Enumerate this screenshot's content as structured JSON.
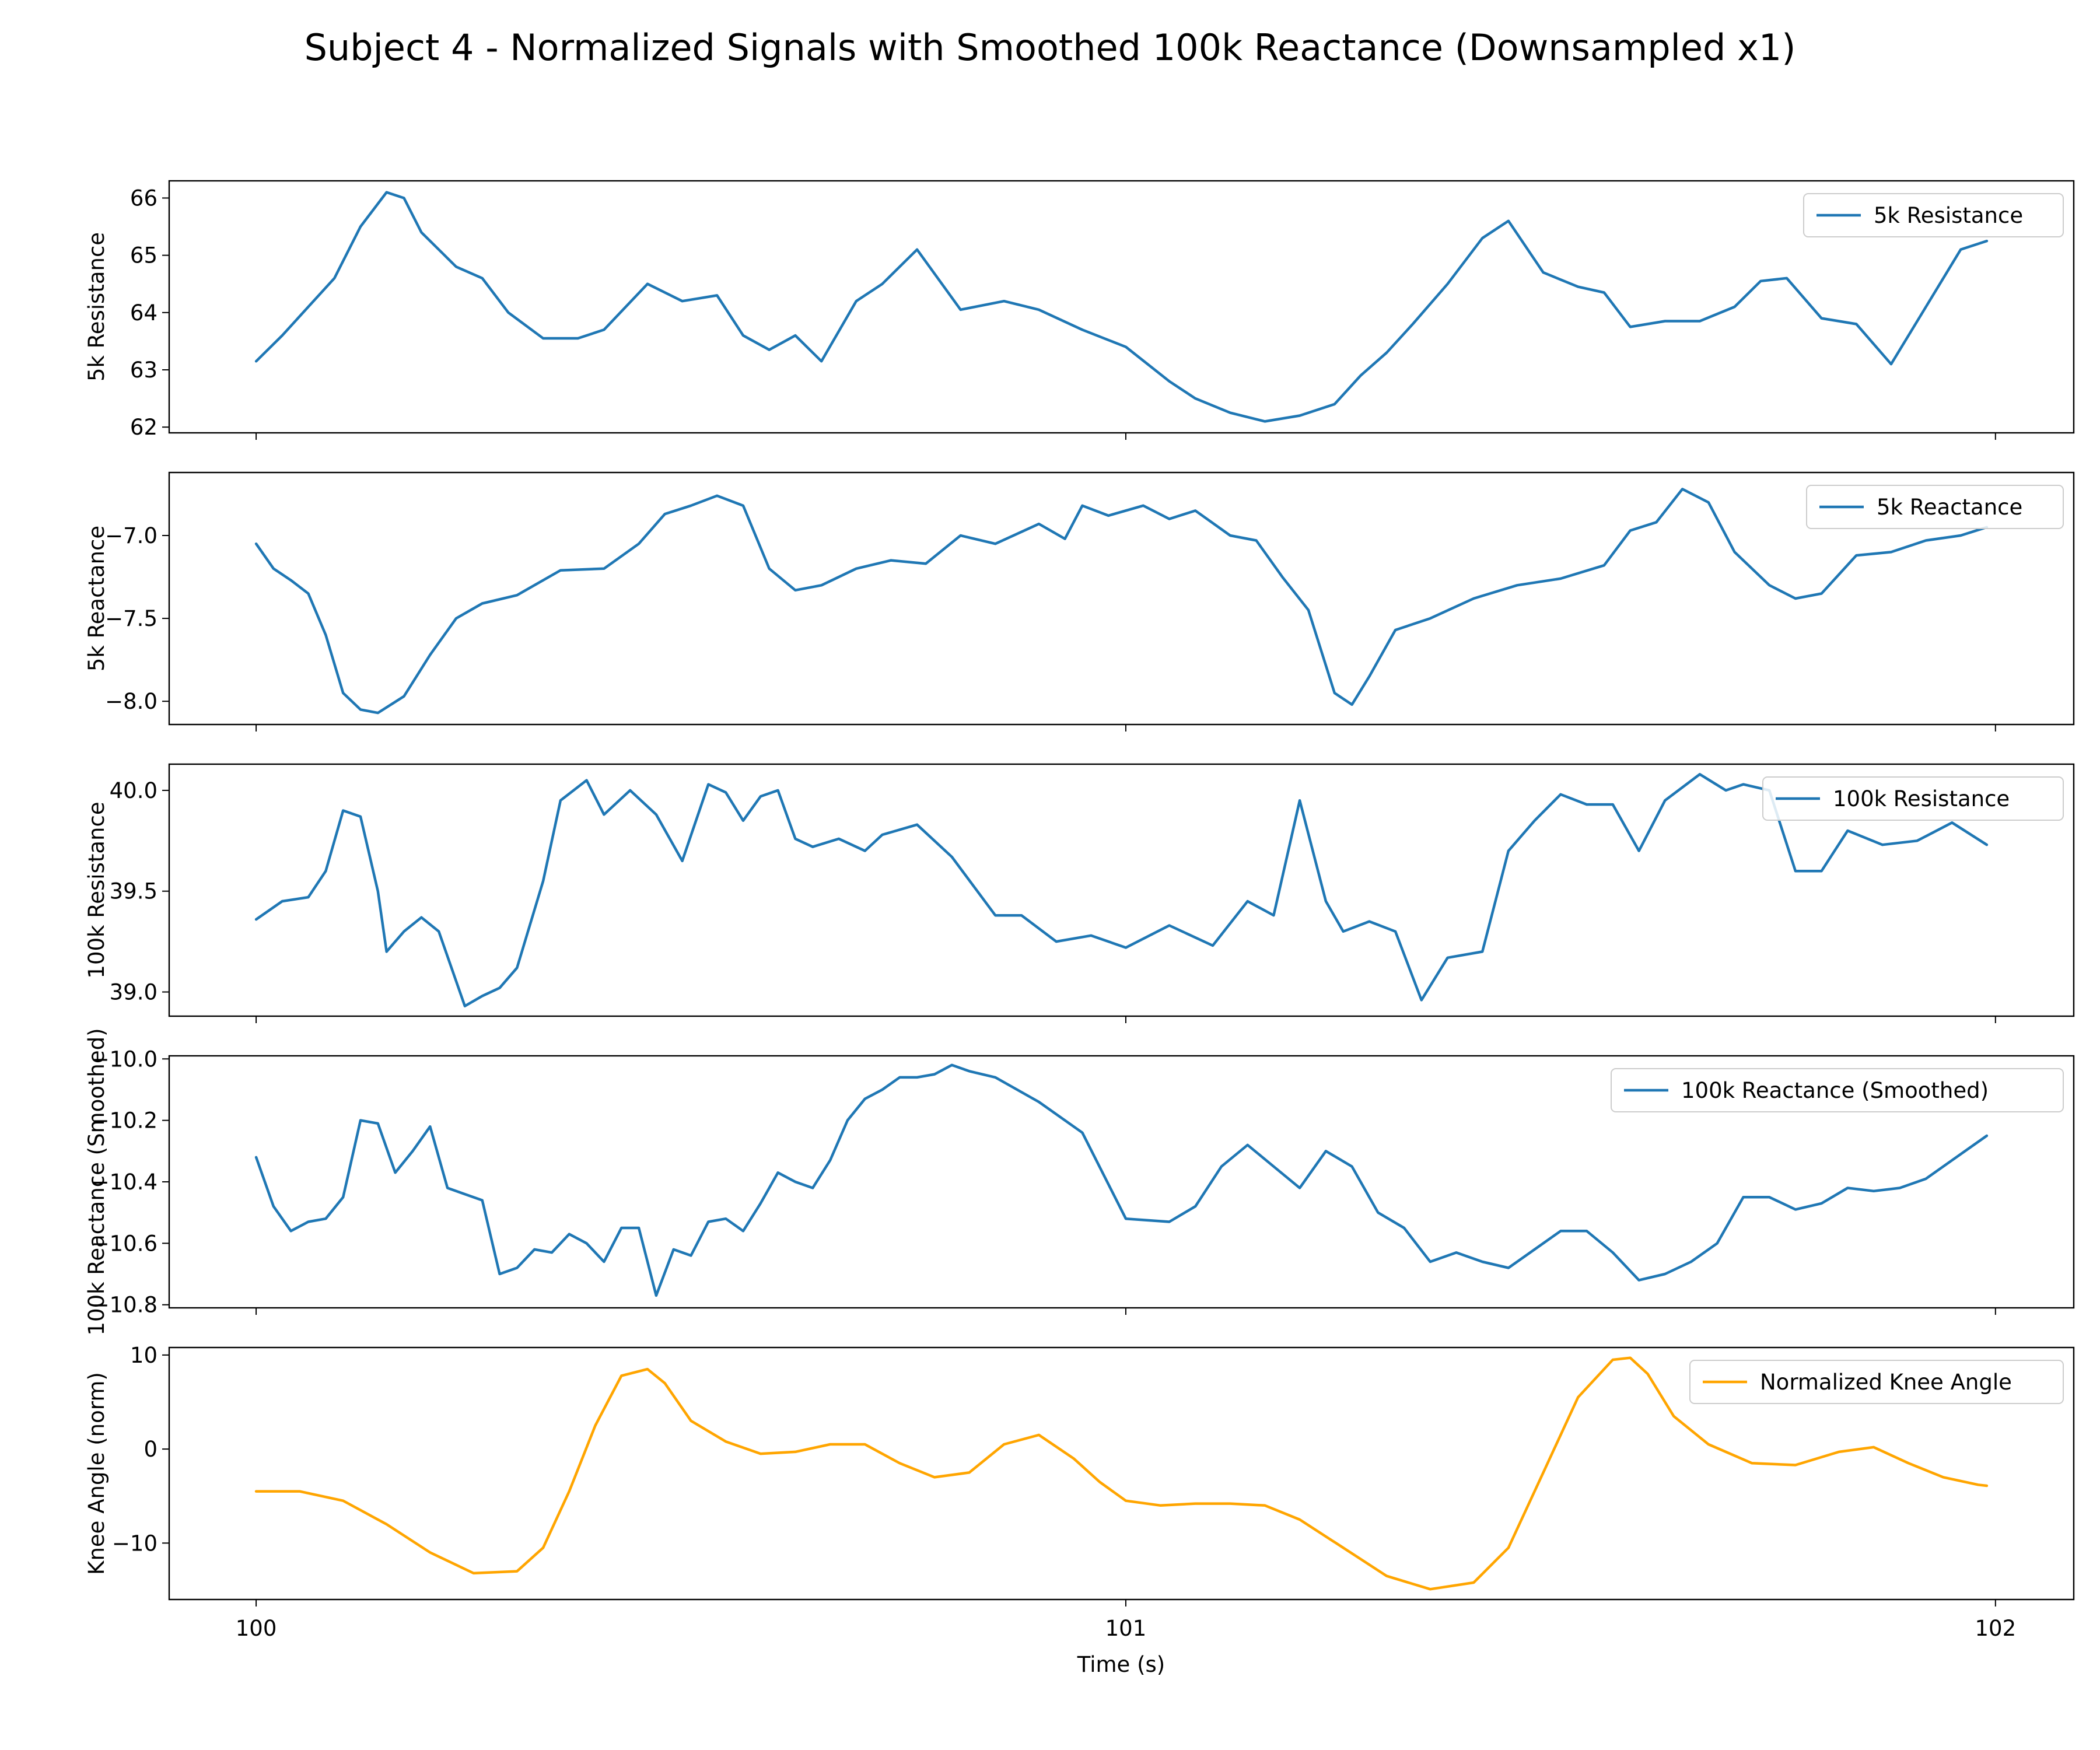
{
  "figure": {
    "title": "Subject 4 - Normalized Signals with Smoothed 100k Reactance (Downsampled x1)",
    "xlabel": "Time (s)",
    "xlim": [
      99.9,
      102.09
    ],
    "xticks": [
      100,
      101,
      102
    ]
  },
  "chart_data": [
    {
      "type": "line",
      "ylabel": "5k Resistance",
      "ylim": [
        61.9,
        66.3
      ],
      "yticks": [
        62,
        63,
        64,
        65,
        66
      ],
      "ytick_labels": [
        "62",
        "63",
        "64",
        "65",
        "66"
      ],
      "legend": "upper-right",
      "series": [
        {
          "name": "5k Resistance",
          "color": "#1f77b4",
          "x": [
            100,
            100.03,
            100.06,
            100.09,
            100.12,
            100.15,
            100.17,
            100.19,
            100.23,
            100.26,
            100.29,
            100.33,
            100.37,
            100.4,
            100.45,
            100.49,
            100.53,
            100.56,
            100.59,
            100.62,
            100.65,
            100.69,
            100.72,
            100.76,
            100.81,
            100.86,
            100.9,
            100.95,
            101.0,
            101.05,
            101.08,
            101.12,
            101.16,
            101.2,
            101.24,
            101.27,
            101.3,
            101.33,
            101.37,
            101.41,
            101.44,
            101.48,
            101.52,
            101.55,
            101.58,
            101.62,
            101.66,
            101.7,
            101.73,
            101.76,
            101.8,
            101.84,
            101.88,
            101.92,
            101.96,
            101.99
          ],
          "y": [
            63.15,
            63.6,
            64.1,
            64.6,
            65.5,
            66.1,
            66.0,
            65.4,
            64.8,
            64.6,
            64.0,
            63.55,
            63.55,
            63.7,
            64.5,
            64.2,
            64.3,
            63.6,
            63.35,
            63.6,
            63.15,
            64.2,
            64.5,
            65.1,
            64.05,
            64.2,
            64.05,
            63.7,
            63.4,
            62.8,
            62.5,
            62.25,
            62.1,
            62.2,
            62.4,
            62.9,
            63.3,
            63.8,
            64.5,
            65.3,
            65.6,
            64.7,
            64.45,
            64.35,
            63.75,
            63.85,
            63.85,
            64.1,
            64.55,
            64.6,
            63.9,
            63.8,
            63.1,
            64.1,
            65.1,
            65.25
          ]
        }
      ]
    },
    {
      "type": "line",
      "ylabel": "5k Reactance",
      "ylim": [
        -8.14,
        -6.62
      ],
      "yticks": [
        -8.0,
        -7.5,
        -7.0
      ],
      "ytick_labels": [
        "−8.0",
        "−7.5",
        "−7.0"
      ],
      "legend": "upper-right",
      "series": [
        {
          "name": "5k Reactance",
          "color": "#1f77b4",
          "x": [
            100,
            100.02,
            100.04,
            100.06,
            100.08,
            100.1,
            100.12,
            100.14,
            100.17,
            100.2,
            100.23,
            100.26,
            100.3,
            100.35,
            100.4,
            100.44,
            100.47,
            100.5,
            100.53,
            100.56,
            100.59,
            100.62,
            100.65,
            100.69,
            100.73,
            100.77,
            100.81,
            100.85,
            100.9,
            100.93,
            100.95,
            100.98,
            101.02,
            101.05,
            101.08,
            101.12,
            101.15,
            101.18,
            101.21,
            101.24,
            101.26,
            101.28,
            101.31,
            101.35,
            101.4,
            101.45,
            101.5,
            101.55,
            101.58,
            101.61,
            101.64,
            101.67,
            101.7,
            101.74,
            101.77,
            101.8,
            101.84,
            101.88,
            101.92,
            101.96,
            101.99
          ],
          "y": [
            -7.05,
            -7.2,
            -7.27,
            -7.35,
            -7.6,
            -7.95,
            -8.05,
            -8.07,
            -7.97,
            -7.72,
            -7.5,
            -7.41,
            -7.36,
            -7.21,
            -7.2,
            -7.05,
            -6.87,
            -6.82,
            -6.76,
            -6.82,
            -7.2,
            -7.33,
            -7.3,
            -7.2,
            -7.15,
            -7.17,
            -7.0,
            -7.05,
            -6.93,
            -7.02,
            -6.82,
            -6.88,
            -6.82,
            -6.9,
            -6.85,
            -7.0,
            -7.03,
            -7.25,
            -7.45,
            -7.95,
            -8.02,
            -7.85,
            -7.57,
            -7.5,
            -7.38,
            -7.3,
            -7.26,
            -7.18,
            -6.97,
            -6.92,
            -6.72,
            -6.8,
            -7.1,
            -7.3,
            -7.38,
            -7.35,
            -7.12,
            -7.1,
            -7.03,
            -7.0,
            -6.95
          ]
        }
      ]
    },
    {
      "type": "line",
      "ylabel": "100k Resistance",
      "ylim": [
        38.88,
        40.13
      ],
      "yticks": [
        39.0,
        39.5,
        40.0
      ],
      "ytick_labels": [
        "39.0",
        "39.5",
        "40.0"
      ],
      "legend": "upper-right",
      "series": [
        {
          "name": "100k Resistance",
          "color": "#1f77b4",
          "x": [
            100,
            100.03,
            100.06,
            100.08,
            100.1,
            100.12,
            100.14,
            100.15,
            100.17,
            100.19,
            100.21,
            100.24,
            100.26,
            100.28,
            100.3,
            100.33,
            100.35,
            100.38,
            100.4,
            100.43,
            100.46,
            100.49,
            100.52,
            100.54,
            100.56,
            100.58,
            100.6,
            100.62,
            100.64,
            100.67,
            100.7,
            100.72,
            100.76,
            100.8,
            100.85,
            100.88,
            100.92,
            100.96,
            101.0,
            101.05,
            101.1,
            101.14,
            101.17,
            101.2,
            101.23,
            101.25,
            101.28,
            101.31,
            101.34,
            101.37,
            101.41,
            101.44,
            101.47,
            101.5,
            101.53,
            101.56,
            101.59,
            101.62,
            101.66,
            101.69,
            101.71,
            101.74,
            101.77,
            101.8,
            101.83,
            101.87,
            101.91,
            101.95,
            101.99
          ],
          "y": [
            39.36,
            39.45,
            39.47,
            39.6,
            39.9,
            39.87,
            39.5,
            39.2,
            39.3,
            39.37,
            39.3,
            38.93,
            38.98,
            39.02,
            39.12,
            39.55,
            39.95,
            40.05,
            39.88,
            40.0,
            39.88,
            39.65,
            40.03,
            39.99,
            39.85,
            39.97,
            40.0,
            39.76,
            39.72,
            39.76,
            39.7,
            39.78,
            39.83,
            39.67,
            39.38,
            39.38,
            39.25,
            39.28,
            39.22,
            39.33,
            39.23,
            39.45,
            39.38,
            39.95,
            39.45,
            39.3,
            39.35,
            39.3,
            38.96,
            39.17,
            39.2,
            39.7,
            39.85,
            39.98,
            39.93,
            39.93,
            39.7,
            39.95,
            40.08,
            40.0,
            40.03,
            40.0,
            39.6,
            39.6,
            39.8,
            39.73,
            39.75,
            39.84,
            39.73
          ]
        }
      ]
    },
    {
      "type": "line",
      "ylabel": "100k Reactance (Smoothed)",
      "ylim": [
        -10.81,
        -9.99
      ],
      "yticks": [
        -10.8,
        -10.6,
        -10.4,
        -10.2,
        -10.0
      ],
      "ytick_labels": [
        "−10.8",
        "−10.6",
        "−10.4",
        "−10.2",
        "−10.0"
      ],
      "legend": "upper-right",
      "series": [
        {
          "name": "100k Reactance (Smoothed)",
          "color": "#1f77b4",
          "x": [
            100,
            100.02,
            100.04,
            100.06,
            100.08,
            100.1,
            100.12,
            100.14,
            100.16,
            100.18,
            100.2,
            100.22,
            100.24,
            100.26,
            100.28,
            100.3,
            100.32,
            100.34,
            100.36,
            100.38,
            100.4,
            100.42,
            100.44,
            100.46,
            100.48,
            100.5,
            100.52,
            100.54,
            100.56,
            100.58,
            100.6,
            100.62,
            100.64,
            100.66,
            100.68,
            100.7,
            100.72,
            100.74,
            100.76,
            100.78,
            100.8,
            100.82,
            100.85,
            100.9,
            100.95,
            101.0,
            101.05,
            101.08,
            101.11,
            101.14,
            101.17,
            101.2,
            101.23,
            101.26,
            101.29,
            101.32,
            101.35,
            101.38,
            101.41,
            101.44,
            101.47,
            101.5,
            101.53,
            101.56,
            101.59,
            101.62,
            101.65,
            101.68,
            101.71,
            101.74,
            101.77,
            101.8,
            101.83,
            101.86,
            101.89,
            101.92,
            101.95,
            101.97,
            101.99
          ],
          "y": [
            -10.32,
            -10.48,
            -10.56,
            -10.53,
            -10.52,
            -10.45,
            -10.2,
            -10.21,
            -10.37,
            -10.3,
            -10.22,
            -10.42,
            -10.44,
            -10.46,
            -10.7,
            -10.68,
            -10.62,
            -10.63,
            -10.57,
            -10.6,
            -10.66,
            -10.55,
            -10.55,
            -10.77,
            -10.62,
            -10.64,
            -10.53,
            -10.52,
            -10.56,
            -10.47,
            -10.37,
            -10.4,
            -10.42,
            -10.33,
            -10.2,
            -10.13,
            -10.1,
            -10.06,
            -10.06,
            -10.05,
            -10.02,
            -10.04,
            -10.06,
            -10.14,
            -10.24,
            -10.52,
            -10.53,
            -10.48,
            -10.35,
            -10.28,
            -10.35,
            -10.42,
            -10.3,
            -10.35,
            -10.5,
            -10.55,
            -10.66,
            -10.63,
            -10.66,
            -10.68,
            -10.62,
            -10.56,
            -10.56,
            -10.63,
            -10.72,
            -10.7,
            -10.66,
            -10.6,
            -10.45,
            -10.45,
            -10.49,
            -10.47,
            -10.42,
            -10.43,
            -10.42,
            -10.39,
            -10.33,
            -10.29,
            -10.25
          ]
        }
      ]
    },
    {
      "type": "line",
      "ylabel": "Knee Angle (norm)",
      "ylim": [
        -16.0,
        10.8
      ],
      "yticks": [
        -10,
        0,
        10
      ],
      "ytick_labels": [
        "−10",
        "0",
        "10"
      ],
      "legend": "upper-right",
      "series": [
        {
          "name": "Normalized Knee Angle",
          "color": "#ffa500",
          "x": [
            100,
            100.05,
            100.1,
            100.15,
            100.2,
            100.25,
            100.3,
            100.33,
            100.36,
            100.39,
            100.42,
            100.45,
            100.47,
            100.5,
            100.54,
            100.58,
            100.62,
            100.66,
            100.7,
            100.74,
            100.78,
            100.82,
            100.86,
            100.9,
            100.94,
            100.97,
            101.0,
            101.04,
            101.08,
            101.12,
            101.16,
            101.2,
            101.25,
            101.3,
            101.35,
            101.4,
            101.44,
            101.48,
            101.52,
            101.56,
            101.58,
            101.6,
            101.63,
            101.67,
            101.72,
            101.77,
            101.82,
            101.86,
            101.9,
            101.94,
            101.98,
            101.99
          ],
          "y": [
            -4.5,
            -4.5,
            -5.5,
            -8.0,
            -11.0,
            -13.2,
            -13.0,
            -10.5,
            -4.5,
            2.5,
            7.8,
            8.5,
            7.0,
            3.0,
            0.8,
            -0.5,
            -0.3,
            0.5,
            0.5,
            -1.5,
            -3.0,
            -2.5,
            0.5,
            1.5,
            -1.0,
            -3.5,
            -5.5,
            -6.0,
            -5.8,
            -5.8,
            -6.0,
            -7.5,
            -10.5,
            -13.5,
            -14.9,
            -14.2,
            -10.5,
            -2.5,
            5.5,
            9.5,
            9.7,
            8.0,
            3.5,
            0.5,
            -1.5,
            -1.7,
            -0.3,
            0.2,
            -1.5,
            -3.0,
            -3.8,
            -3.9
          ]
        }
      ]
    }
  ]
}
